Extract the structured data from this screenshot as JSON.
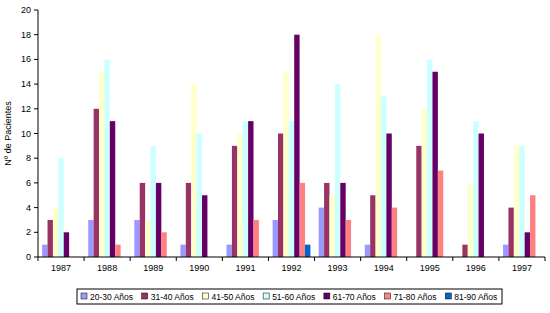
{
  "chart_data": {
    "type": "bar",
    "y_label": "Nº de Pacientes",
    "categories": [
      "1987",
      "1988",
      "1989",
      "1990",
      "1991",
      "1992",
      "1993",
      "1994",
      "1995",
      "1996",
      "1997"
    ],
    "series": [
      {
        "name": "20-30 Años",
        "color": "#9999ff",
        "values": [
          1,
          3,
          3,
          1,
          1,
          3,
          4,
          1,
          0,
          0,
          1
        ]
      },
      {
        "name": "31-40 Años",
        "color": "#993366",
        "values": [
          3,
          12,
          6,
          6,
          9,
          10,
          6,
          5,
          9,
          1,
          4
        ]
      },
      {
        "name": "41-50 Años",
        "color": "#ffffcc",
        "values": [
          4,
          15,
          3,
          14,
          10,
          15,
          5,
          18,
          12,
          6,
          9
        ]
      },
      {
        "name": "51-60 Años",
        "color": "#ccffff",
        "values": [
          8,
          16,
          9,
          10,
          11,
          11,
          14,
          13,
          16,
          11,
          9
        ]
      },
      {
        "name": "61-70 Años",
        "color": "#660066",
        "values": [
          2,
          11,
          6,
          5,
          11,
          18,
          6,
          10,
          15,
          10,
          2
        ]
      },
      {
        "name": "71-80 Años",
        "color": "#ff8080",
        "values": [
          0,
          1,
          2,
          0,
          3,
          6,
          3,
          4,
          7,
          0,
          5
        ]
      },
      {
        "name": "81-90 Años",
        "color": "#0066cc",
        "values": [
          0,
          0,
          0,
          0,
          0,
          1,
          0,
          0,
          0,
          0,
          0
        ]
      }
    ],
    "ylim": [
      0,
      20
    ],
    "yticks": [
      0,
      2,
      4,
      6,
      8,
      10,
      12,
      14,
      16,
      18,
      20
    ],
    "grid": false,
    "legend": "bottom"
  }
}
